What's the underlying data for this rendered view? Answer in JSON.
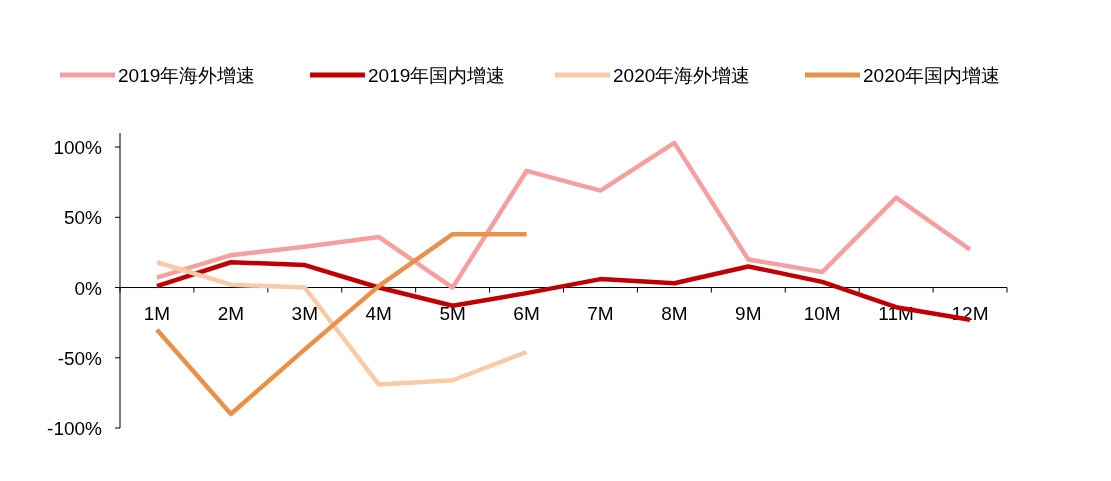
{
  "chart_data": {
    "type": "line",
    "categories": [
      "1M",
      "2M",
      "3M",
      "4M",
      "5M",
      "6M",
      "7M",
      "8M",
      "9M",
      "10M",
      "11M",
      "12M"
    ],
    "series": [
      {
        "name": "2019年海外增速",
        "color": "#f4a0a0",
        "values": [
          7,
          23,
          29,
          36,
          0,
          83,
          69,
          103,
          20,
          11,
          64,
          27
        ]
      },
      {
        "name": "2019年国内增速",
        "color": "#c00000",
        "values": [
          1,
          18,
          16,
          0,
          -13,
          -4,
          6,
          3,
          15,
          4,
          -14,
          -23
        ]
      },
      {
        "name": "2020年海外增速",
        "color": "#f8cba8",
        "values": [
          18,
          2,
          0,
          -69,
          -66,
          -46,
          null,
          null,
          null,
          null,
          null,
          null
        ]
      },
      {
        "name": "2020年国内增速",
        "color": "#e8914a",
        "values": [
          -30,
          -90,
          -44,
          1,
          38,
          38,
          null,
          null,
          null,
          null,
          null,
          null
        ]
      }
    ],
    "ylim": [
      -100,
      110
    ],
    "yticks": [
      {
        "value": 100,
        "label": "100%"
      },
      {
        "value": 50,
        "label": "50%"
      },
      {
        "value": 0,
        "label": "0%"
      },
      {
        "value": -50,
        "label": "-50%"
      },
      {
        "value": -100,
        "label": "-100%"
      }
    ],
    "grid": false,
    "legend": "top",
    "marker": "none",
    "line_style": "solid"
  }
}
